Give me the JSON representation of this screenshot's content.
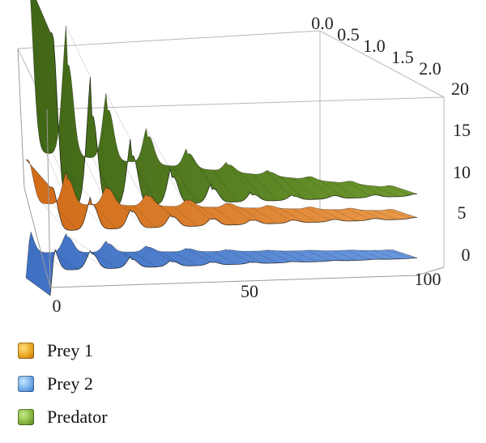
{
  "chart_data": {
    "type": "surface-3d",
    "title": "",
    "x_axis": {
      "label": "",
      "ticks": [
        "0",
        "50",
        "100"
      ],
      "range": [
        0,
        100
      ]
    },
    "y_axis": {
      "label": "",
      "ticks": [
        "0.0",
        "0.5",
        "1.0",
        "1.5",
        "2.0"
      ],
      "range": [
        0,
        2
      ]
    },
    "z_axis": {
      "label": "",
      "ticks": [
        "0",
        "5",
        "10",
        "15",
        "20"
      ],
      "range": [
        0,
        20
      ]
    },
    "legend_position": "bottom-left",
    "series": [
      {
        "name": "Prey 1",
        "color": "#e27f26",
        "initial_value": 8,
        "equilibrium": 4.5,
        "peaks": [
          8,
          7,
          6.5,
          6,
          5.7,
          5.4,
          5.2
        ]
      },
      {
        "name": "Prey 2",
        "color": "#4a7fd0",
        "initial_value": 0,
        "equilibrium": 2,
        "peaks": [
          4,
          3.5,
          3,
          2.7,
          2.5,
          2.3,
          2.2
        ]
      },
      {
        "name": "Predator",
        "color": "#6a9a2a",
        "initial_value": 20,
        "equilibrium": 6,
        "peaks": [
          20,
          15,
          12,
          10,
          8.5,
          7.5,
          7
        ]
      }
    ]
  }
}
